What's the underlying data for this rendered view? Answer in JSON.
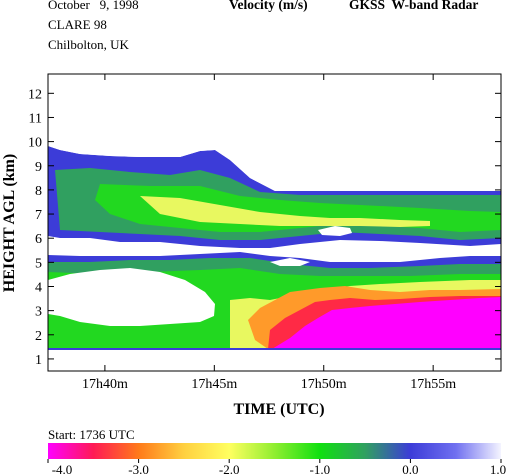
{
  "header": {
    "date": "October   9, 1998",
    "campaign": "CLARE 98",
    "location": "Chilbolton, UK",
    "quantity": "Velocity (m/s)",
    "instrument": "GKSS  W-band Radar"
  },
  "chart_data": {
    "type": "heatmap",
    "title": "Velocity (m/s)",
    "xlabel": "TIME (UTC)",
    "ylabel": "HEIGHT AGL (km)",
    "start_label": "Start: 1736 UTC",
    "x_ticks": [
      "17h40m",
      "17h45m",
      "17h50m",
      "17h55m"
    ],
    "x_tick_minutes": [
      40,
      45,
      50,
      55
    ],
    "xlim_minutes": [
      37.4,
      58.1
    ],
    "y_ticks": [
      "1",
      "2",
      "3",
      "4",
      "5",
      "6",
      "7",
      "8",
      "9",
      "10",
      "11",
      "12"
    ],
    "ylim_km": [
      0.5,
      12.8
    ],
    "colorbar": {
      "ticks": [
        "-4.0",
        "-3.0",
        "-2.0",
        "-1.0",
        "0.0",
        "1.0"
      ],
      "range": [
        -4.0,
        1.0
      ]
    },
    "layers": [
      {
        "name": "upper cloud",
        "top_km": [
          9.3,
          9.0,
          8.9,
          8.8,
          8.6,
          8.9,
          8.4,
          8.0,
          7.9,
          7.5,
          7.5,
          7.5,
          7.5
        ],
        "base_km": [
          6.5,
          6.3,
          6.1,
          5.9,
          5.7,
          5.5,
          5.5,
          5.4,
          5.5,
          5.5,
          5.4,
          5.4,
          5.4
        ],
        "velocity_ms": -0.6
      },
      {
        "name": "lower cloud",
        "top_km": [
          4.9,
          5.0,
          5.0,
          4.9,
          4.9,
          5.0,
          4.8,
          4.6,
          4.7,
          4.6,
          4.6,
          4.7,
          4.7
        ],
        "base_km": [
          1.0,
          1.0,
          1.0,
          1.0,
          1.0,
          1.0,
          1.0,
          1.0,
          1.0,
          1.0,
          1.0,
          1.0,
          1.0
        ],
        "velocity_ms": -0.7
      },
      {
        "name": "precipitation",
        "start_minute": 47.6,
        "top_km": [
          1.1,
          2.6,
          2.9,
          3.1,
          3.1,
          3.2,
          3.3
        ],
        "velocity_ms": -3.8
      }
    ]
  }
}
